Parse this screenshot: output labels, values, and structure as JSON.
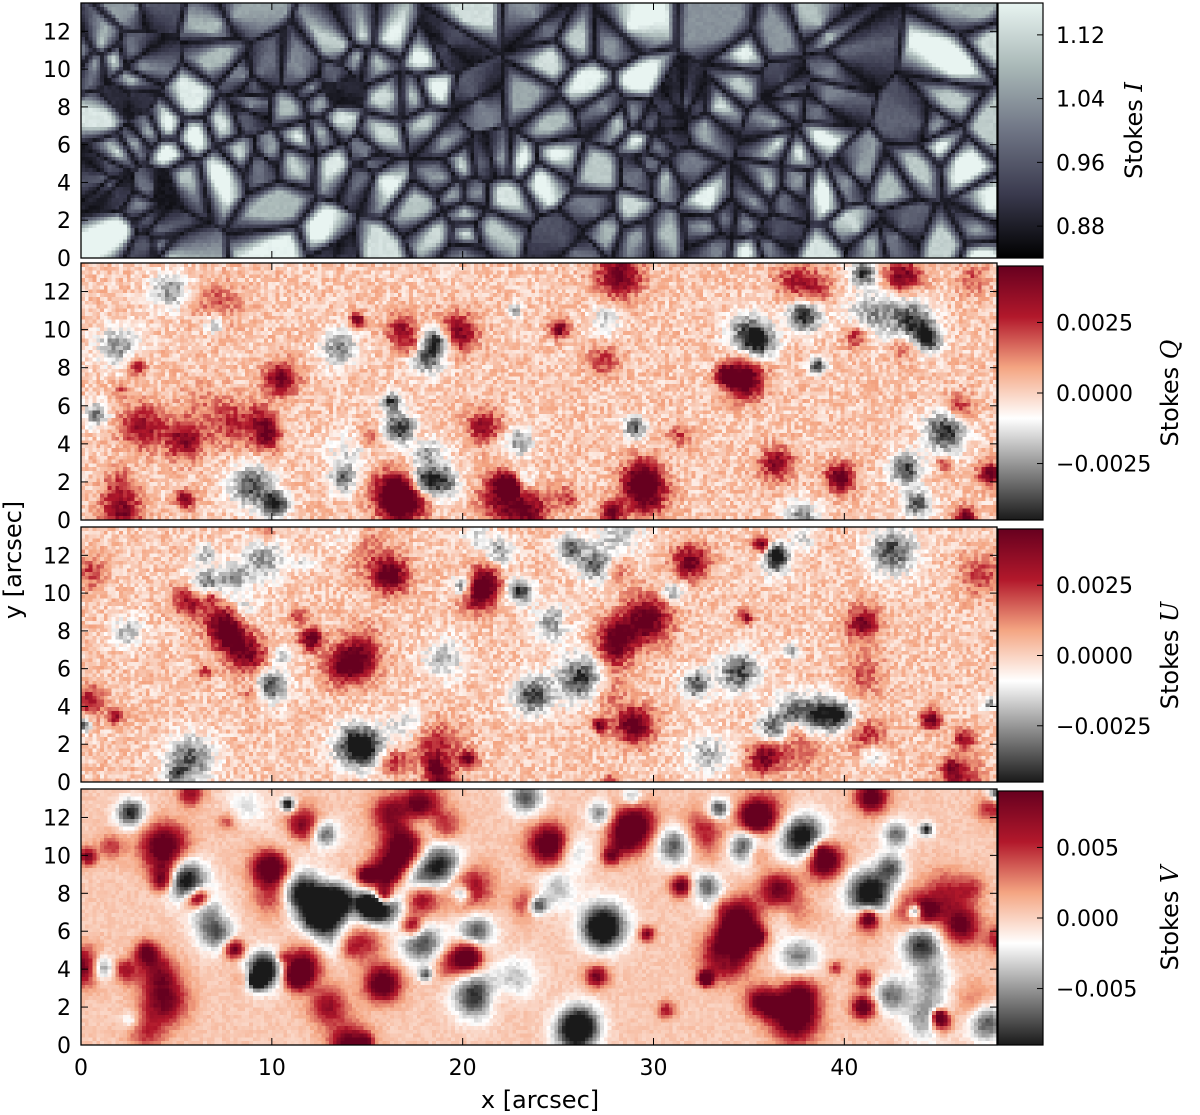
{
  "chart_data": [
    {
      "type": "heatmap",
      "panel": "stokes-i",
      "colorbar_label": "Stokes",
      "colorbar_symbol": "I",
      "colormap": "bone",
      "colormap_stops": [
        "#000000",
        "#3a3a4e",
        "#6f7585",
        "#a9b8b7",
        "#e8f4f1"
      ],
      "value_range": [
        0.84,
        1.16
      ],
      "colorbar_ticks": [
        0.88,
        0.96,
        1.04,
        1.12
      ],
      "colorbar_tick_labels": [
        "0.88",
        "0.96",
        "1.04",
        "1.12"
      ],
      "y_ticks": [
        0,
        2,
        4,
        6,
        8,
        10,
        12
      ],
      "xlim": [
        0,
        48
      ],
      "ylim": [
        0,
        13.5
      ]
    },
    {
      "type": "heatmap",
      "panel": "stokes-q",
      "colorbar_label": "Stokes",
      "colorbar_symbol": "Q",
      "colormap": "RdGy_r",
      "colormap_stops": [
        "#1a1a1a",
        "#8a8a8a",
        "#ffffff",
        "#f4a582",
        "#b2182b",
        "#67001f"
      ],
      "value_range": [
        -0.0045,
        0.0045
      ],
      "colorbar_ticks": [
        -0.0025,
        0.0,
        0.0025
      ],
      "colorbar_tick_labels": [
        "−0.0025",
        "0.0000",
        "0.0025"
      ],
      "y_ticks": [
        0,
        2,
        4,
        6,
        8,
        10,
        12
      ],
      "xlim": [
        0,
        48
      ],
      "ylim": [
        0,
        13.5
      ]
    },
    {
      "type": "heatmap",
      "panel": "stokes-u",
      "colorbar_label": "Stokes",
      "colorbar_symbol": "U",
      "colormap": "RdGy_r",
      "colormap_stops": [
        "#1a1a1a",
        "#8a8a8a",
        "#ffffff",
        "#f4a582",
        "#b2182b",
        "#67001f"
      ],
      "value_range": [
        -0.0045,
        0.0045
      ],
      "colorbar_ticks": [
        -0.0025,
        0.0,
        0.0025
      ],
      "colorbar_tick_labels": [
        "−0.0025",
        "0.0000",
        "0.0025"
      ],
      "y_ticks": [
        0,
        2,
        4,
        6,
        8,
        10,
        12
      ],
      "xlim": [
        0,
        48
      ],
      "ylim": [
        0,
        13.5
      ]
    },
    {
      "type": "heatmap",
      "panel": "stokes-v",
      "colorbar_label": "Stokes",
      "colorbar_symbol": "V",
      "colormap": "RdGy_r",
      "colormap_stops": [
        "#1a1a1a",
        "#8a8a8a",
        "#ffffff",
        "#f4a582",
        "#b2182b",
        "#67001f"
      ],
      "value_range": [
        -0.009,
        0.009
      ],
      "colorbar_ticks": [
        -0.005,
        0.0,
        0.005
      ],
      "colorbar_tick_labels": [
        "−0.005",
        "0.000",
        "0.005"
      ],
      "y_ticks": [
        0,
        2,
        4,
        6,
        8,
        10,
        12
      ],
      "xlim": [
        0,
        48
      ],
      "ylim": [
        0,
        13.5
      ]
    }
  ],
  "axes": {
    "xlabel": "x [arcsec]",
    "ylabel": "y [arcsec]",
    "x_ticks": [
      0,
      10,
      20,
      30,
      40
    ],
    "x_tick_labels": [
      "0",
      "10",
      "20",
      "30",
      "40"
    ]
  }
}
